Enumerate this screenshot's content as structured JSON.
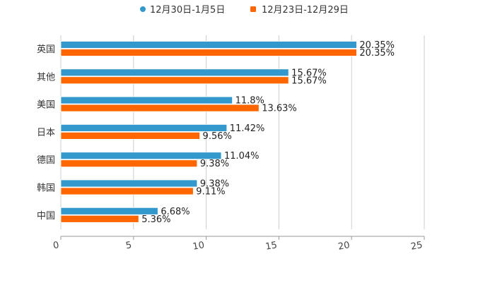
{
  "chart_data": {
    "type": "bar",
    "orientation": "horizontal",
    "title": "",
    "xlabel": "",
    "ylabel": "",
    "categories": [
      "英国",
      "其他",
      "美国",
      "日本",
      "德国",
      "韩国",
      "中国"
    ],
    "series": [
      {
        "name": "12月30日-1月5日",
        "color": "#3399cc",
        "values": [
          20.35,
          15.67,
          11.8,
          11.42,
          11.04,
          9.38,
          6.68
        ],
        "labels": [
          "20.35%",
          "15.67%",
          "11.8%",
          "11.42%",
          "11.04%",
          "9.38%",
          "6.68%"
        ]
      },
      {
        "name": "12月23日-12月29日",
        "color": "#ff6600",
        "values": [
          20.35,
          15.67,
          13.63,
          9.56,
          9.38,
          9.11,
          5.36
        ],
        "labels": [
          "20.35%",
          "15.67%",
          "13.63%",
          "9.56%",
          "9.38%",
          "9.11%",
          "5.36%"
        ]
      }
    ],
    "xlim": [
      0,
      25
    ],
    "xticks": [
      "0",
      "5",
      "10",
      "15",
      "20",
      "25"
    ],
    "xtick_values": [
      0,
      5,
      10,
      15,
      20,
      25
    ],
    "grid": true,
    "legend_position": "top-center"
  }
}
